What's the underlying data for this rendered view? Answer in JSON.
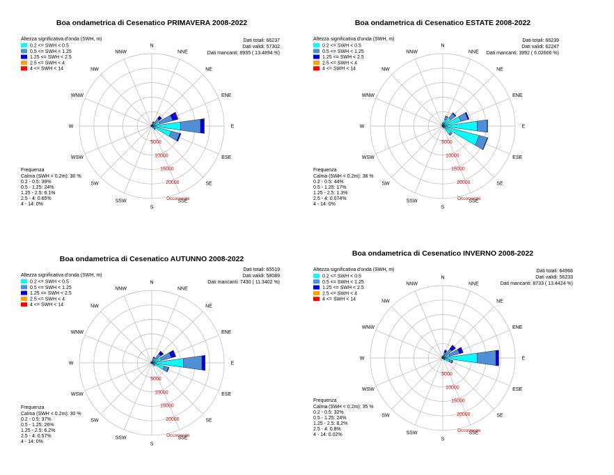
{
  "legend_title": "Altezza significativa d'onda (SWH, m)",
  "legend_classes": [
    {
      "label": "0.2 <= SWH < 0.5",
      "color": "#00FFFF"
    },
    {
      "label": "0.5 <= SWH < 1.25",
      "color": "#4F8FD8"
    },
    {
      "label": "1.25 <= SWH < 2.5",
      "color": "#0000E0"
    },
    {
      "label": "2.5 <= SWH < 4",
      "color": "#FFA000"
    },
    {
      "label": "4 <= SWH < 14",
      "color": "#FF0000"
    }
  ],
  "directions": [
    "N",
    "NNE",
    "NE",
    "ENE",
    "E",
    "ESE",
    "SE",
    "SSE",
    "S",
    "SSW",
    "SW",
    "WSW",
    "W",
    "WNW",
    "NW",
    "NNW"
  ],
  "occurrence_label": "Occorrenze",
  "frequency_title": "Frequenza",
  "chart_data": [
    {
      "type": "windrose",
      "title": "Boa ondametrica di Cesenatico PRIMAVERA 2008-2022",
      "stats": [
        "Dati totali: 66237",
        "Dati validi: 57302",
        "Dati mancanti: 8935 ( 13.4894 %)"
      ],
      "frequency": [
        "Calma (SWH < 0.2m):  30 %",
        "0.2 - 0.5: 39%",
        "0.5 - 1.25: 24%",
        "1.25 - 2.5: 6.1%",
        "2.5 - 4: 0.65%",
        "4 - 14: 0%"
      ],
      "ring_ticks": [
        5000,
        10000,
        15000,
        20000
      ],
      "rmax": 25000,
      "sectors": [
        {
          "dir": "N",
          "values": [
            300,
            150,
            40,
            0,
            0
          ]
        },
        {
          "dir": "NNE",
          "values": [
            700,
            600,
            250,
            20,
            0
          ]
        },
        {
          "dir": "NE",
          "values": [
            1500,
            1800,
            1000,
            100,
            0
          ]
        },
        {
          "dir": "ENE",
          "values": [
            3000,
            4500,
            1800,
            200,
            0
          ]
        },
        {
          "dir": "E",
          "values": [
            10000,
            7000,
            1200,
            150,
            0
          ]
        },
        {
          "dir": "ESE",
          "values": [
            7000,
            3000,
            400,
            30,
            0
          ]
        },
        {
          "dir": "SE",
          "values": [
            1200,
            400,
            50,
            0,
            0
          ]
        },
        {
          "dir": "SSE",
          "values": [
            300,
            100,
            10,
            0,
            0
          ]
        },
        {
          "dir": "S",
          "values": [
            200,
            60,
            0,
            0,
            0
          ]
        },
        {
          "dir": "SSW",
          "values": [
            150,
            50,
            0,
            0,
            0
          ]
        },
        {
          "dir": "SW",
          "values": [
            150,
            60,
            0,
            0,
            0
          ]
        },
        {
          "dir": "WSW",
          "values": [
            150,
            60,
            0,
            0,
            0
          ]
        },
        {
          "dir": "W",
          "values": [
            250,
            80,
            10,
            0,
            0
          ]
        },
        {
          "dir": "WNW",
          "values": [
            250,
            80,
            10,
            0,
            0
          ]
        },
        {
          "dir": "NW",
          "values": [
            300,
            120,
            20,
            0,
            0
          ]
        },
        {
          "dir": "NNW",
          "values": [
            250,
            100,
            20,
            0,
            0
          ]
        }
      ]
    },
    {
      "type": "windrose",
      "title": "Boa ondametrica di Cesenatico ESTATE 2008-2022",
      "stats": [
        "Dati totali: 66239",
        "Dati validi: 62247",
        "Dati mancanti: 3992 ( 6.02666 %)"
      ],
      "frequency": [
        "Calma (SWH < 0.2m):  38 %",
        "0.2 - 0.5: 44%",
        "0.5 - 1.25: 17%",
        "1.25 - 2.5: 1.3%",
        "2.5 - 4: 0.074%",
        "4 - 14: 0%"
      ],
      "ring_ticks": [
        5000,
        10000,
        15000,
        20000
      ],
      "rmax": 25000,
      "sectors": [
        {
          "dir": "N",
          "values": [
            800,
            300,
            30,
            0,
            0
          ]
        },
        {
          "dir": "NNE",
          "values": [
            2500,
            1000,
            120,
            0,
            0
          ]
        },
        {
          "dir": "NE",
          "values": [
            3500,
            2000,
            300,
            10,
            0
          ]
        },
        {
          "dir": "ENE",
          "values": [
            6500,
            2500,
            400,
            20,
            0
          ]
        },
        {
          "dir": "E",
          "values": [
            12000,
            3500,
            150,
            0,
            0
          ]
        },
        {
          "dir": "ESE",
          "values": [
            13000,
            3000,
            150,
            0,
            0
          ]
        },
        {
          "dir": "SE",
          "values": [
            3500,
            600,
            10,
            0,
            0
          ]
        },
        {
          "dir": "SSE",
          "values": [
            700,
            100,
            0,
            0,
            0
          ]
        },
        {
          "dir": "S",
          "values": [
            300,
            50,
            0,
            0,
            0
          ]
        },
        {
          "dir": "SSW",
          "values": [
            250,
            40,
            0,
            0,
            0
          ]
        },
        {
          "dir": "SW",
          "values": [
            250,
            40,
            0,
            0,
            0
          ]
        },
        {
          "dir": "WSW",
          "values": [
            250,
            40,
            0,
            0,
            0
          ]
        },
        {
          "dir": "W",
          "values": [
            300,
            50,
            0,
            0,
            0
          ]
        },
        {
          "dir": "WNW",
          "values": [
            300,
            50,
            0,
            0,
            0
          ]
        },
        {
          "dir": "NW",
          "values": [
            400,
            80,
            0,
            0,
            0
          ]
        },
        {
          "dir": "NNW",
          "values": [
            400,
            80,
            0,
            0,
            0
          ]
        }
      ]
    },
    {
      "type": "windrose",
      "title": "Boa ondametrica di Cesenatico AUTUNNO 2008-2022",
      "stats": [
        "Dati totali: 65519",
        "Dati validi: 58089",
        "Dati mancanti: 7430 ( 11.3402 %)"
      ],
      "frequency": [
        "Calma (SWH < 0.2m):  30 %",
        "0.2 - 0.5: 37%",
        "0.5 - 1.25: 26%",
        "1.25 - 2.5: 6.2%",
        "2.5 - 4: 0.57%",
        "4 - 14: 0%"
      ],
      "ring_ticks": [
        5000,
        10000,
        15000,
        20000
      ],
      "rmax": 25000,
      "sectors": [
        {
          "dir": "N",
          "values": [
            300,
            150,
            30,
            0,
            0
          ]
        },
        {
          "dir": "NNE",
          "values": [
            1000,
            800,
            300,
            20,
            0
          ]
        },
        {
          "dir": "NE",
          "values": [
            2000,
            2000,
            1000,
            100,
            0
          ]
        },
        {
          "dir": "ENE",
          "values": [
            3500,
            3500,
            1500,
            150,
            0
          ]
        },
        {
          "dir": "E",
          "values": [
            11000,
            6500,
            1000,
            100,
            0
          ]
        },
        {
          "dir": "ESE",
          "values": [
            4500,
            1500,
            200,
            0,
            0
          ]
        },
        {
          "dir": "SE",
          "values": [
            1000,
            300,
            20,
            0,
            0
          ]
        },
        {
          "dir": "SSE",
          "values": [
            300,
            80,
            0,
            0,
            0
          ]
        },
        {
          "dir": "S",
          "values": [
            200,
            60,
            0,
            0,
            0
          ]
        },
        {
          "dir": "SSW",
          "values": [
            150,
            50,
            0,
            0,
            0
          ]
        },
        {
          "dir": "SW",
          "values": [
            150,
            50,
            0,
            0,
            0
          ]
        },
        {
          "dir": "WSW",
          "values": [
            150,
            50,
            0,
            0,
            0
          ]
        },
        {
          "dir": "W",
          "values": [
            250,
            80,
            10,
            0,
            0
          ]
        },
        {
          "dir": "WNW",
          "values": [
            250,
            100,
            10,
            0,
            0
          ]
        },
        {
          "dir": "NW",
          "values": [
            300,
            120,
            20,
            0,
            0
          ]
        },
        {
          "dir": "NNW",
          "values": [
            250,
            100,
            20,
            0,
            0
          ]
        }
      ]
    },
    {
      "type": "windrose",
      "title": "Boa ondametrica di Cesenatico INVERNO 2008-2022",
      "stats": [
        "Dati totali: 64966",
        "Dati validi: 56233",
        "Dati mancanti: 8733 ( 13.4424 %)"
      ],
      "frequency": [
        "Calma (SWH < 0.2m):  35 %",
        "0.2 - 0.5: 32%",
        "0.5 - 1.25: 24%",
        "1.25 - 2.5: 8.2%",
        "2.5 - 4: 0.8%",
        "4 - 14: 0.02%"
      ],
      "ring_ticks": [
        5000,
        10000,
        15000,
        20000
      ],
      "rmax": 25000,
      "sectors": [
        {
          "dir": "N",
          "values": [
            300,
            300,
            100,
            10,
            0
          ]
        },
        {
          "dir": "NNE",
          "values": [
            800,
            1200,
            800,
            60,
            0
          ]
        },
        {
          "dir": "NE",
          "values": [
            1500,
            2500,
            1500,
            150,
            0
          ]
        },
        {
          "dir": "ENE",
          "values": [
            2500,
            3500,
            1200,
            150,
            0
          ]
        },
        {
          "dir": "E",
          "values": [
            12000,
            6500,
            900,
            100,
            10
          ]
        },
        {
          "dir": "ESE",
          "values": [
            2500,
            1000,
            150,
            0,
            0
          ]
        },
        {
          "dir": "SE",
          "values": [
            700,
            200,
            20,
            0,
            0
          ]
        },
        {
          "dir": "SSE",
          "values": [
            250,
            80,
            0,
            0,
            0
          ]
        },
        {
          "dir": "S",
          "values": [
            200,
            60,
            0,
            0,
            0
          ]
        },
        {
          "dir": "SSW",
          "values": [
            150,
            50,
            0,
            0,
            0
          ]
        },
        {
          "dir": "SW",
          "values": [
            150,
            50,
            0,
            0,
            0
          ]
        },
        {
          "dir": "WSW",
          "values": [
            150,
            50,
            0,
            0,
            0
          ]
        },
        {
          "dir": "W",
          "values": [
            250,
            80,
            10,
            0,
            0
          ]
        },
        {
          "dir": "WNW",
          "values": [
            250,
            100,
            10,
            0,
            0
          ]
        },
        {
          "dir": "NW",
          "values": [
            300,
            150,
            20,
            0,
            0
          ]
        },
        {
          "dir": "NNW",
          "values": [
            250,
            120,
            20,
            0,
            0
          ]
        }
      ]
    }
  ]
}
